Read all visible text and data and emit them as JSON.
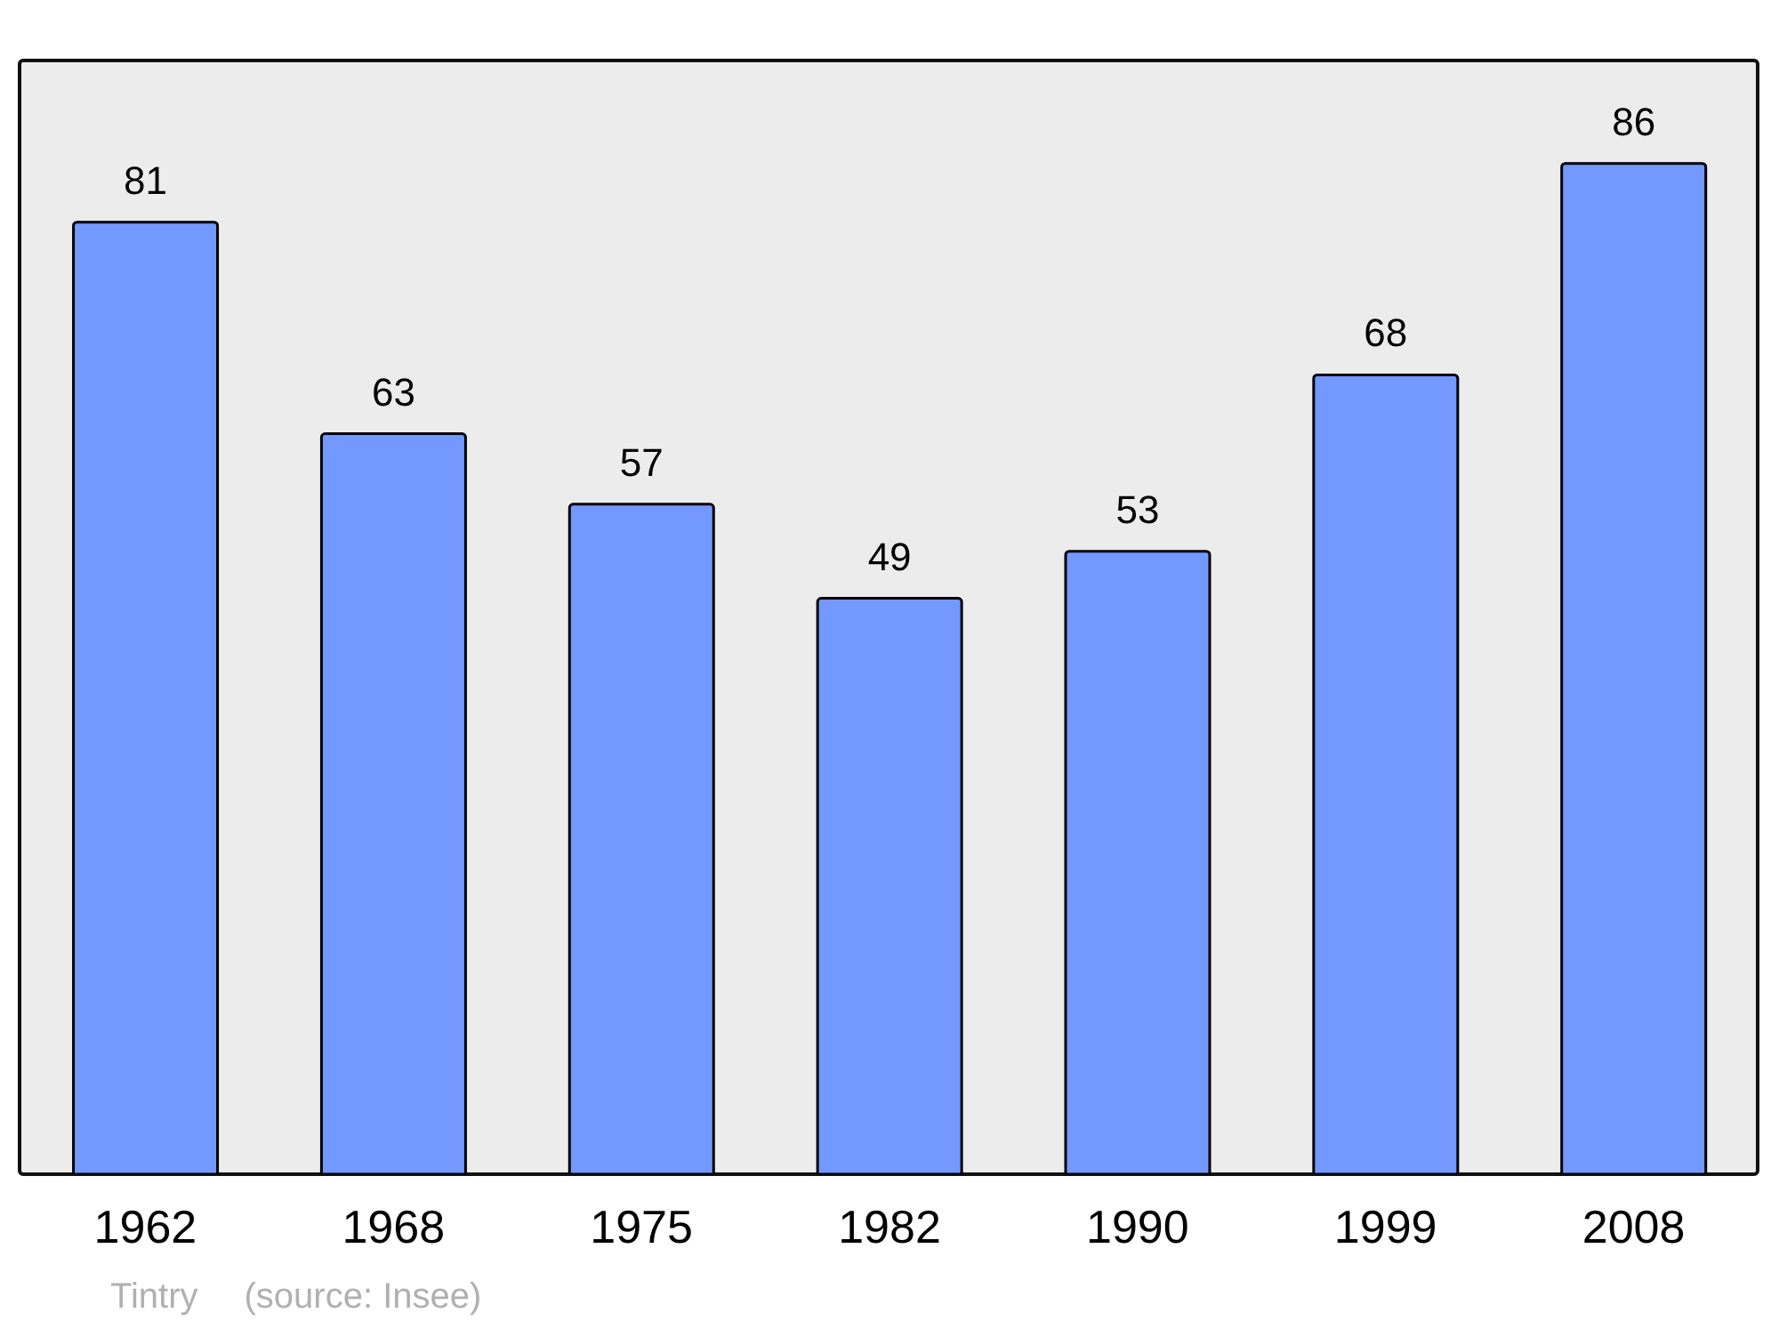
{
  "chart_data": {
    "type": "bar",
    "categories": [
      "1962",
      "1968",
      "1975",
      "1982",
      "1990",
      "1999",
      "2008"
    ],
    "values": [
      81,
      63,
      57,
      49,
      53,
      68,
      86
    ],
    "color": "#7398ff",
    "data_labels": true,
    "annotations": [
      "Tintry",
      "(source: Insee)"
    ]
  }
}
